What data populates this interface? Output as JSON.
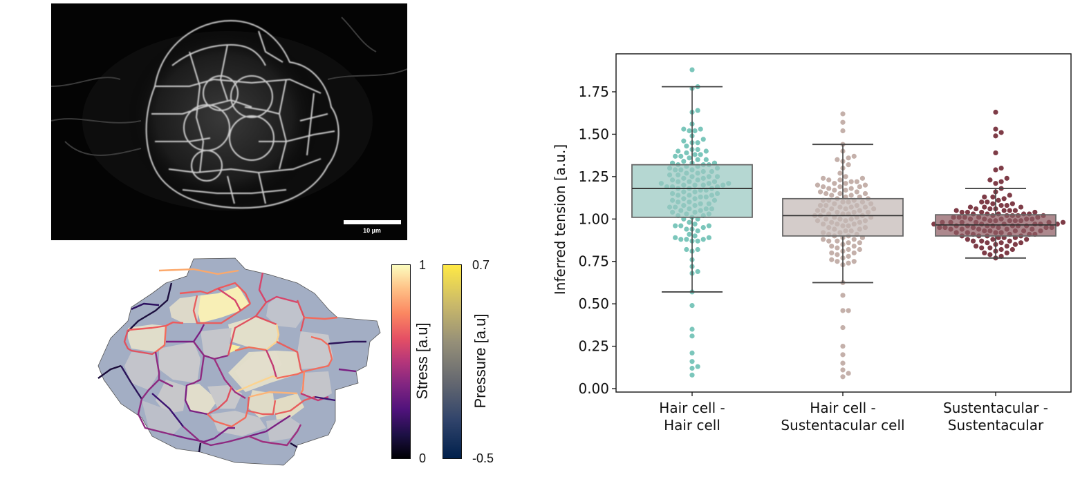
{
  "microscopy": {
    "scale_bar_label": "10 µm"
  },
  "colorbars": {
    "stress": {
      "label": "Stress [a.u]",
      "max": "1",
      "min": "0"
    },
    "pressure": {
      "label": "Pressure [a.u]",
      "max": "0.7",
      "min": "-0.5"
    }
  },
  "colors": {
    "hair_hair": "#7bc6bb",
    "hair_hair_box": "#98c8c0",
    "hair_sust": "#c4b0aa",
    "hair_sust_box": "#c4b8b5",
    "sust_sust": "#7e3c47",
    "sust_sust_box": "#8e5c63",
    "box_edge": "#666666",
    "median": "#333333"
  },
  "chart_data": {
    "type": "box+swarm",
    "title": "",
    "xlabel": "",
    "ylabel": "Inferred tension [a.u.]",
    "ylim": [
      -0.02,
      1.97
    ],
    "yticks": [
      "0.00",
      "0.25",
      "0.50",
      "0.75",
      "1.00",
      "1.25",
      "1.50",
      "1.75"
    ],
    "ytick_values": [
      0,
      0.25,
      0.5,
      0.75,
      1.0,
      1.25,
      1.5,
      1.75
    ],
    "categories": [
      {
        "line1": "Hair cell -",
        "line2": "Hair cell"
      },
      {
        "line1": "Hair cell -",
        "line2": "Sustentacular cell"
      },
      {
        "line1": "Sustentacular -",
        "line2": "Sustentacular"
      }
    ],
    "boxes": [
      {
        "q1": 1.01,
        "median": 1.18,
        "q3": 1.32,
        "whisker_low": 0.57,
        "whisker_high": 1.78
      },
      {
        "q1": 0.9,
        "median": 1.02,
        "q3": 1.12,
        "whisker_low": 0.625,
        "whisker_high": 1.44
      },
      {
        "q1": 0.9,
        "median": 0.965,
        "q3": 1.025,
        "whisker_low": 0.77,
        "whisker_high": 1.18
      }
    ],
    "series": [
      {
        "name": "Hair cell - Hair cell",
        "values": [
          1.88,
          1.78,
          1.77,
          1.64,
          1.63,
          1.56,
          1.53,
          1.52,
          1.52,
          1.53,
          1.49,
          1.47,
          1.46,
          1.45,
          1.45,
          1.43,
          1.41,
          1.41,
          1.4,
          1.4,
          1.39,
          1.38,
          1.38,
          1.37,
          1.37,
          1.36,
          1.35,
          1.35,
          1.34,
          1.33,
          1.33,
          1.33,
          1.32,
          1.32,
          1.32,
          1.31,
          1.31,
          1.3,
          1.3,
          1.29,
          1.29,
          1.29,
          1.28,
          1.28,
          1.27,
          1.27,
          1.26,
          1.26,
          1.25,
          1.25,
          1.25,
          1.24,
          1.24,
          1.23,
          1.23,
          1.22,
          1.22,
          1.22,
          1.21,
          1.21,
          1.21,
          1.2,
          1.2,
          1.2,
          1.2,
          1.19,
          1.19,
          1.19,
          1.18,
          1.18,
          1.18,
          1.17,
          1.17,
          1.16,
          1.16,
          1.15,
          1.15,
          1.14,
          1.14,
          1.14,
          1.13,
          1.13,
          1.12,
          1.12,
          1.11,
          1.11,
          1.1,
          1.1,
          1.09,
          1.09,
          1.08,
          1.08,
          1.07,
          1.07,
          1.06,
          1.06,
          1.06,
          1.05,
          1.05,
          1.04,
          1.04,
          1.03,
          1.03,
          1.02,
          1.02,
          1.01,
          1.0,
          1.0,
          0.98,
          0.97,
          0.96,
          0.96,
          0.96,
          0.95,
          0.94,
          0.94,
          0.93,
          0.91,
          0.9,
          0.89,
          0.89,
          0.88,
          0.88,
          0.88,
          0.87,
          0.87,
          0.82,
          0.82,
          0.81,
          0.76,
          0.72,
          0.69,
          0.68,
          0.57,
          0.49,
          0.35,
          0.31,
          0.21,
          0.16,
          0.13,
          0.12,
          0.08
        ]
      },
      {
        "name": "Hair cell - Sustentacular cell",
        "values": [
          1.62,
          1.57,
          1.52,
          1.44,
          1.4,
          1.37,
          1.36,
          1.35,
          1.34,
          1.32,
          1.3,
          1.27,
          1.25,
          1.24,
          1.24,
          1.23,
          1.23,
          1.22,
          1.22,
          1.21,
          1.21,
          1.2,
          1.2,
          1.19,
          1.19,
          1.19,
          1.18,
          1.18,
          1.17,
          1.17,
          1.16,
          1.16,
          1.15,
          1.15,
          1.15,
          1.14,
          1.14,
          1.13,
          1.13,
          1.12,
          1.12,
          1.11,
          1.11,
          1.11,
          1.1,
          1.1,
          1.1,
          1.09,
          1.09,
          1.08,
          1.08,
          1.08,
          1.07,
          1.07,
          1.07,
          1.06,
          1.06,
          1.06,
          1.05,
          1.05,
          1.05,
          1.04,
          1.04,
          1.04,
          1.03,
          1.03,
          1.03,
          1.02,
          1.02,
          1.02,
          1.01,
          1.01,
          1.01,
          1.0,
          1.0,
          1.0,
          0.99,
          0.99,
          0.99,
          0.98,
          0.98,
          0.97,
          0.97,
          0.97,
          0.96,
          0.96,
          0.95,
          0.95,
          0.94,
          0.94,
          0.93,
          0.93,
          0.92,
          0.92,
          0.91,
          0.91,
          0.9,
          0.9,
          0.89,
          0.89,
          0.88,
          0.88,
          0.87,
          0.87,
          0.86,
          0.86,
          0.85,
          0.84,
          0.84,
          0.83,
          0.82,
          0.82,
          0.81,
          0.8,
          0.8,
          0.79,
          0.78,
          0.77,
          0.76,
          0.75,
          0.75,
          0.74,
          0.73,
          0.625,
          0.55,
          0.46,
          0.46,
          0.36,
          0.25,
          0.2,
          0.15,
          0.11,
          0.09,
          0.07
        ]
      },
      {
        "name": "Sustentacular - Sustentacular",
        "values": [
          1.63,
          1.53,
          1.51,
          1.49,
          1.39,
          1.3,
          1.29,
          1.24,
          1.23,
          1.22,
          1.21,
          1.18,
          1.16,
          1.14,
          1.13,
          1.13,
          1.12,
          1.11,
          1.1,
          1.1,
          1.09,
          1.09,
          1.08,
          1.08,
          1.07,
          1.07,
          1.07,
          1.06,
          1.06,
          1.06,
          1.05,
          1.05,
          1.05,
          1.05,
          1.04,
          1.04,
          1.04,
          1.04,
          1.03,
          1.03,
          1.03,
          1.03,
          1.03,
          1.02,
          1.02,
          1.02,
          1.02,
          1.02,
          1.01,
          1.01,
          1.01,
          1.01,
          1.01,
          1.0,
          1.0,
          1.0,
          1.0,
          1.0,
          0.99,
          0.99,
          0.99,
          0.99,
          0.99,
          0.98,
          0.98,
          0.98,
          0.98,
          0.98,
          0.98,
          0.97,
          0.97,
          0.97,
          0.97,
          0.97,
          0.97,
          0.96,
          0.96,
          0.96,
          0.96,
          0.96,
          0.96,
          0.96,
          0.95,
          0.95,
          0.95,
          0.95,
          0.95,
          0.95,
          0.94,
          0.94,
          0.94,
          0.94,
          0.94,
          0.93,
          0.93,
          0.93,
          0.93,
          0.93,
          0.92,
          0.92,
          0.92,
          0.92,
          0.91,
          0.91,
          0.91,
          0.91,
          0.9,
          0.9,
          0.9,
          0.9,
          0.89,
          0.89,
          0.89,
          0.88,
          0.88,
          0.88,
          0.87,
          0.87,
          0.87,
          0.86,
          0.86,
          0.86,
          0.85,
          0.85,
          0.84,
          0.84,
          0.83,
          0.83,
          0.82,
          0.82,
          0.81,
          0.8,
          0.8,
          0.79,
          0.78,
          0.77
        ]
      }
    ]
  }
}
